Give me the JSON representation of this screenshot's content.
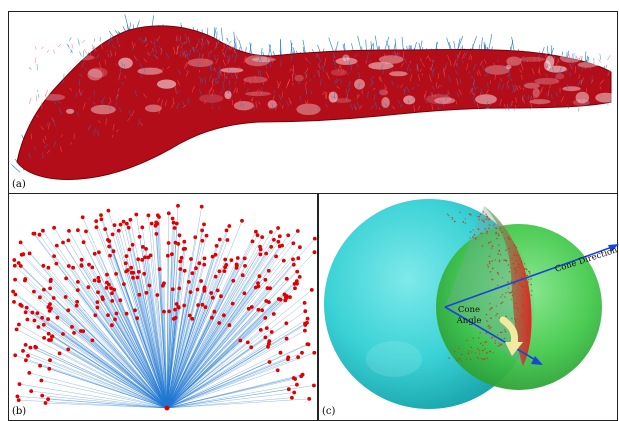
{
  "panels": {
    "a": {
      "label": "(a)"
    },
    "b": {
      "label": "(b)"
    },
    "c": {
      "label": "(c)",
      "cone_direction_label": "Cone Direction",
      "cone_angle_line1": "Cone",
      "cone_angle_line2": "Angle"
    }
  },
  "colors": {
    "normals_blue": "#1f77d0",
    "points_red": "#e00000",
    "sphere_cyan": "#39d3d6",
    "sphere_green": "#3fc84a",
    "arrow_blue": "#1846d8",
    "angle_arrow": "#f3e9a0"
  }
}
